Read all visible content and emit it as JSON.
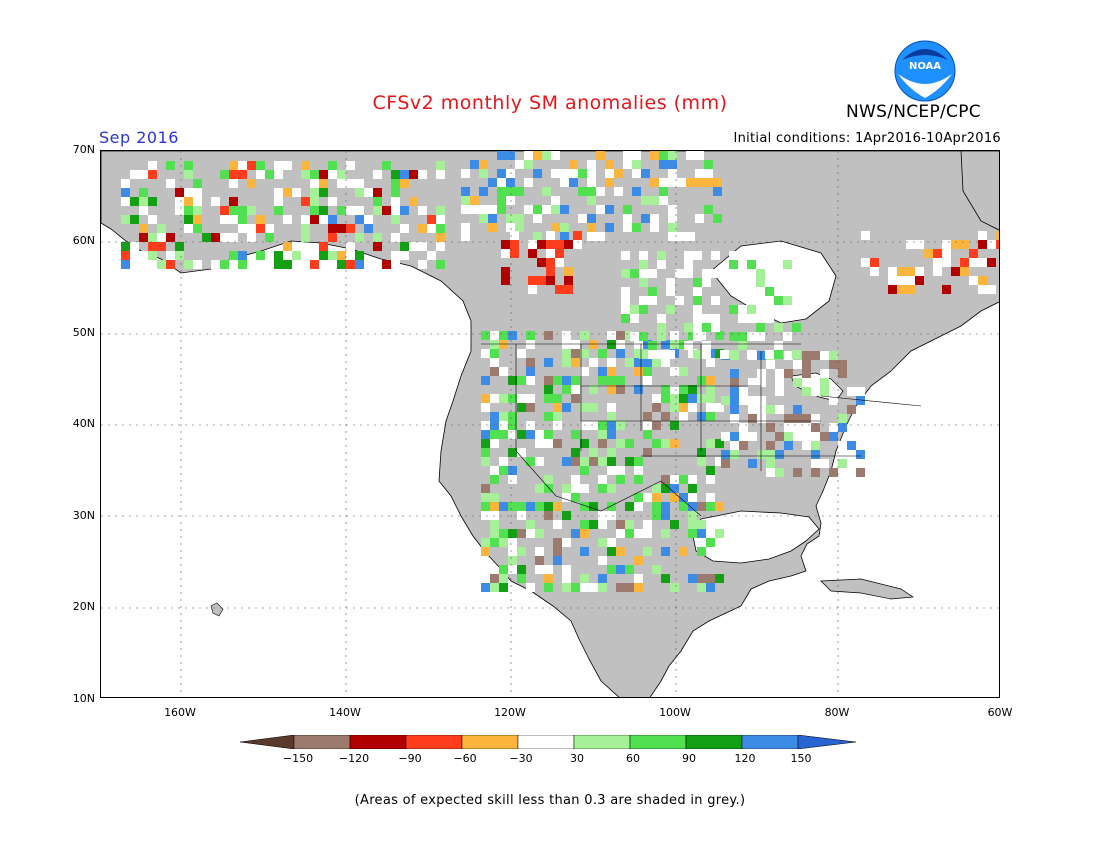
{
  "title": "CFSv2 monthly SM anomalies (mm)",
  "valid_month": "Sep 2016",
  "initial_conditions": "Initial conditions: 1Apr2016-10Apr2016",
  "agency": "NWS/NCEP/CPC",
  "logo_text": "NOAA",
  "lat_labels": [
    "70N",
    "60N",
    "50N",
    "40N",
    "30N",
    "20N",
    "10N"
  ],
  "lon_labels": [
    "160W",
    "140W",
    "120W",
    "100W",
    "80W",
    "60W"
  ],
  "colorbar": {
    "labels": [
      "−150",
      "−120",
      "−90",
      "−60",
      "−30",
      "30",
      "60",
      "90",
      "120",
      "150"
    ],
    "colors": [
      "#5a3a2a",
      "#9c7a6e",
      "#b00000",
      "#ff3c1c",
      "#fbb43c",
      "#ffffff",
      "#a6f09a",
      "#50e050",
      "#14a014",
      "#3c8ce6",
      "#2864d2"
    ]
  },
  "note": "(Areas of expected skill less than 0.3 are shaded in grey.)",
  "colors": {
    "land_masked": "#c0c0c0",
    "water": "#ffffff"
  }
}
